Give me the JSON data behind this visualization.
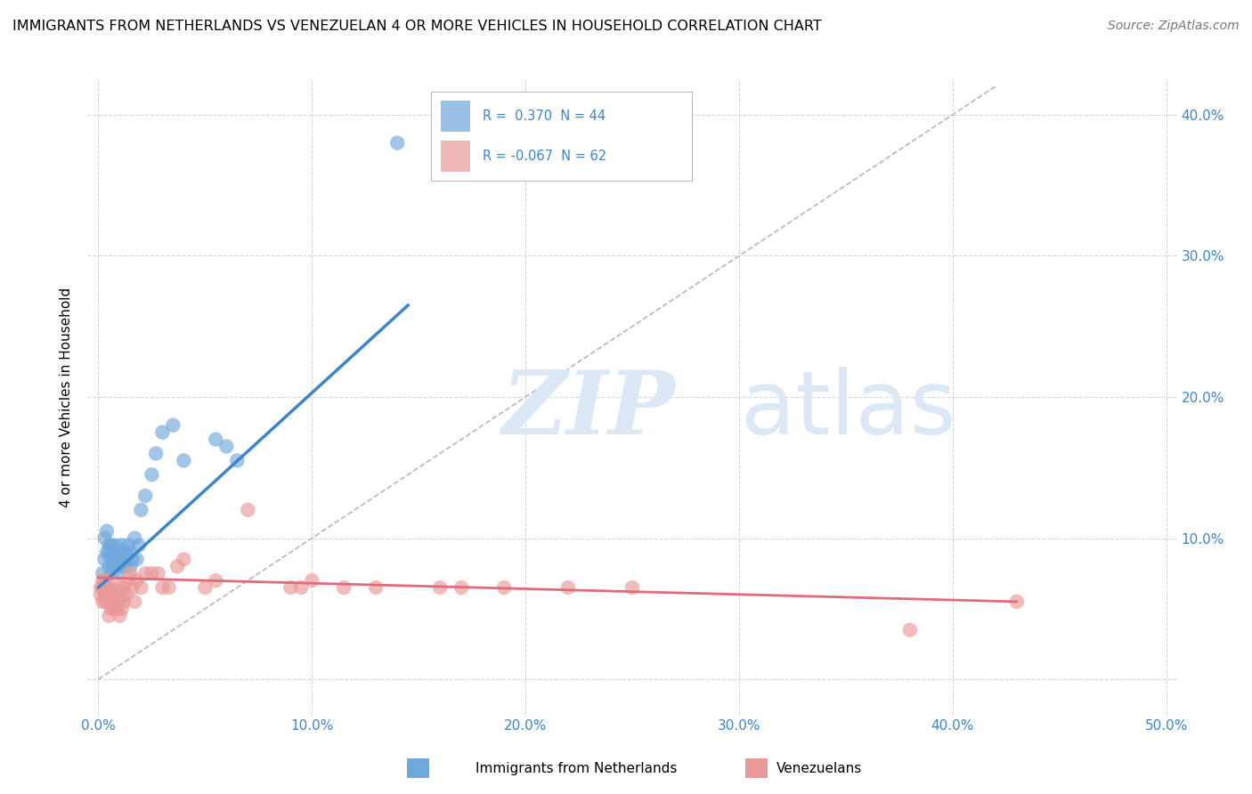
{
  "title": "IMMIGRANTS FROM NETHERLANDS VS VENEZUELAN 4 OR MORE VEHICLES IN HOUSEHOLD CORRELATION CHART",
  "source": "Source: ZipAtlas.com",
  "xlabel": "",
  "ylabel": "4 or more Vehicles in Household",
  "xlim": [
    -0.005,
    0.505
  ],
  "ylim": [
    -0.025,
    0.425
  ],
  "xticks": [
    0.0,
    0.1,
    0.2,
    0.3,
    0.4,
    0.5
  ],
  "yticks": [
    0.0,
    0.1,
    0.2,
    0.3,
    0.4
  ],
  "xticklabels": [
    "0.0%",
    "10.0%",
    "20.0%",
    "30.0%",
    "40.0%",
    "50.0%"
  ],
  "yticklabels_right": [
    "",
    "10.0%",
    "20.0%",
    "30.0%",
    "40.0%"
  ],
  "legend1_label": "R =  0.370  N = 44",
  "legend2_label": "R = -0.067  N = 62",
  "legend_bottom1": "Immigrants from Netherlands",
  "legend_bottom2": "Venezuelans",
  "blue_color": "#6fa8dc",
  "pink_color": "#ea9999",
  "blue_line_color": "#3d85c8",
  "pink_line_color": "#e06c7a",
  "diag_line_color": "#b0b0b0",
  "watermark_color": "#dce8f5",
  "background_color": "#ffffff",
  "grid_color": "#cccccc",
  "blue_points_x": [
    0.002,
    0.003,
    0.003,
    0.004,
    0.004,
    0.005,
    0.005,
    0.005,
    0.006,
    0.006,
    0.006,
    0.007,
    0.007,
    0.007,
    0.008,
    0.008,
    0.009,
    0.009,
    0.01,
    0.01,
    0.011,
    0.011,
    0.012,
    0.012,
    0.013,
    0.013,
    0.014,
    0.015,
    0.015,
    0.016,
    0.017,
    0.018,
    0.019,
    0.02,
    0.022,
    0.025,
    0.027,
    0.03,
    0.035,
    0.04,
    0.055,
    0.06,
    0.065,
    0.14
  ],
  "blue_points_y": [
    0.075,
    0.085,
    0.1,
    0.09,
    0.105,
    0.08,
    0.09,
    0.095,
    0.075,
    0.085,
    0.095,
    0.08,
    0.085,
    0.09,
    0.085,
    0.095,
    0.075,
    0.085,
    0.08,
    0.09,
    0.085,
    0.095,
    0.08,
    0.085,
    0.085,
    0.09,
    0.095,
    0.08,
    0.09,
    0.085,
    0.1,
    0.085,
    0.095,
    0.12,
    0.13,
    0.145,
    0.16,
    0.175,
    0.18,
    0.155,
    0.17,
    0.165,
    0.155,
    0.38
  ],
  "pink_points_x": [
    0.001,
    0.001,
    0.002,
    0.002,
    0.002,
    0.003,
    0.003,
    0.003,
    0.003,
    0.004,
    0.004,
    0.004,
    0.005,
    0.005,
    0.005,
    0.005,
    0.006,
    0.006,
    0.006,
    0.007,
    0.007,
    0.007,
    0.008,
    0.008,
    0.009,
    0.009,
    0.01,
    0.01,
    0.01,
    0.011,
    0.011,
    0.012,
    0.012,
    0.013,
    0.014,
    0.015,
    0.016,
    0.017,
    0.018,
    0.02,
    0.022,
    0.025,
    0.028,
    0.03,
    0.033,
    0.037,
    0.04,
    0.05,
    0.055,
    0.07,
    0.09,
    0.095,
    0.1,
    0.115,
    0.13,
    0.16,
    0.17,
    0.19,
    0.22,
    0.25,
    0.38,
    0.43
  ],
  "pink_points_y": [
    0.06,
    0.065,
    0.055,
    0.065,
    0.07,
    0.055,
    0.06,
    0.065,
    0.07,
    0.055,
    0.06,
    0.065,
    0.045,
    0.055,
    0.06,
    0.065,
    0.05,
    0.055,
    0.06,
    0.05,
    0.055,
    0.065,
    0.05,
    0.06,
    0.05,
    0.06,
    0.045,
    0.055,
    0.065,
    0.05,
    0.06,
    0.055,
    0.065,
    0.06,
    0.07,
    0.075,
    0.065,
    0.055,
    0.07,
    0.065,
    0.075,
    0.075,
    0.075,
    0.065,
    0.065,
    0.08,
    0.085,
    0.065,
    0.07,
    0.12,
    0.065,
    0.065,
    0.07,
    0.065,
    0.065,
    0.065,
    0.065,
    0.065,
    0.065,
    0.065,
    0.035,
    0.055
  ],
  "blue_line_x": [
    0.0,
    0.145
  ],
  "blue_line_y": [
    0.065,
    0.265
  ],
  "pink_line_x": [
    0.0,
    0.43
  ],
  "pink_line_y": [
    0.072,
    0.055
  ]
}
